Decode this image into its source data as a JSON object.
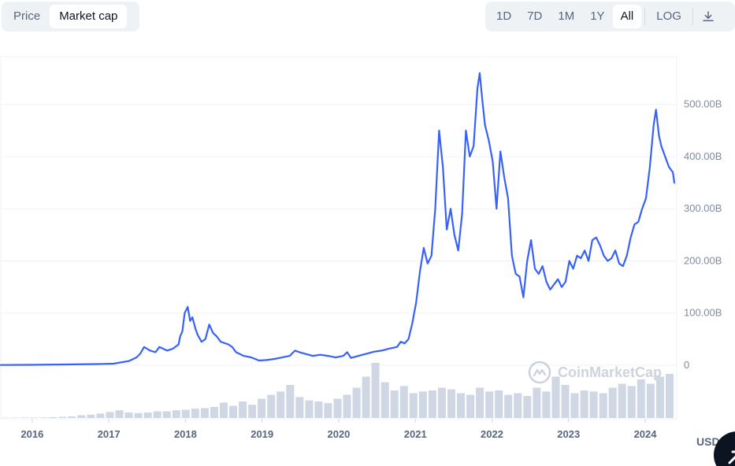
{
  "toggle": {
    "price_label": "Price",
    "market_cap_label": "Market cap"
  },
  "ranges": [
    "1D",
    "7D",
    "1M",
    "1Y",
    "All"
  ],
  "active_range": "All",
  "log_label": "LOG",
  "icons": {
    "download": "download-icon",
    "logo": "coinmarketcap-logo-icon",
    "fab": "arrow-up-right-icon"
  },
  "watermark": "CoinMarketCap",
  "currency": "USD",
  "colors": {
    "line": "#3861fb",
    "volume": "#cfd6e4",
    "grid": "#eff2f5",
    "fab": "#0d1421"
  },
  "chart_data": {
    "type": "line",
    "y_unit": "B",
    "ylim": [
      0,
      580
    ],
    "y_ticks": [
      0,
      100,
      200,
      300,
      400,
      500
    ],
    "y_tick_labels": [
      "0",
      "100.00B",
      "200.00B",
      "300.00B",
      "400.00B",
      "500.00B"
    ],
    "x_ticks": [
      "2016",
      "2017",
      "2018",
      "2019",
      "2020",
      "2021",
      "2022",
      "2023",
      "2024"
    ],
    "x_range": [
      2015.63,
      2024.42
    ],
    "grid": true,
    "series": [
      {
        "x": [
          2015.63,
          2016.0,
          2016.5,
          2016.9,
          2017.1,
          2017.3,
          2017.4,
          2017.45,
          2017.5,
          2017.58,
          2017.65,
          2017.7,
          2017.8,
          2017.88,
          2017.95,
          2017.97,
          2018.0,
          2018.03,
          2018.07,
          2018.1,
          2018.13,
          2018.17,
          2018.2,
          2018.25,
          2018.3,
          2018.35,
          2018.4,
          2018.45,
          2018.5,
          2018.6,
          2018.65,
          2018.7,
          2018.8,
          2018.9,
          2018.95,
          2019.0,
          2019.1,
          2019.2,
          2019.3,
          2019.4,
          2019.47,
          2019.55,
          2019.6,
          2019.7,
          2019.8,
          2019.9,
          2020.0,
          2020.1,
          2020.15,
          2020.2,
          2020.3,
          2020.4,
          2020.5,
          2020.6,
          2020.7,
          2020.8,
          2020.85,
          2020.9,
          2020.95,
          2021.0,
          2021.05,
          2021.1,
          2021.15,
          2021.2,
          2021.25,
          2021.3,
          2021.35,
          2021.4,
          2021.45,
          2021.5,
          2021.55,
          2021.6,
          2021.65,
          2021.7,
          2021.75,
          2021.8,
          2021.85,
          2021.88,
          2021.92,
          2021.95,
          2022.0,
          2022.05,
          2022.1,
          2022.15,
          2022.2,
          2022.25,
          2022.3,
          2022.35,
          2022.4,
          2022.45,
          2022.5,
          2022.55,
          2022.6,
          2022.65,
          2022.7,
          2022.75,
          2022.8,
          2022.85,
          2022.9,
          2022.95,
          2023.0,
          2023.05,
          2023.1,
          2023.15,
          2023.2,
          2023.25,
          2023.3,
          2023.35,
          2023.4,
          2023.45,
          2023.5,
          2023.55,
          2023.6,
          2023.65,
          2023.7,
          2023.75,
          2023.8,
          2023.85,
          2023.9,
          2023.95,
          2024.0,
          2024.05,
          2024.1,
          2024.15,
          2024.18,
          2024.22,
          2024.25,
          2024.3,
          2024.35,
          2024.4,
          2024.42
        ],
        "values": [
          0.5,
          0.8,
          1.5,
          2.2,
          3,
          8,
          15,
          22,
          35,
          28,
          25,
          35,
          28,
          32,
          40,
          55,
          65,
          100,
          112,
          85,
          92,
          70,
          58,
          45,
          50,
          78,
          62,
          55,
          45,
          40,
          35,
          25,
          18,
          15,
          12,
          9,
          10,
          12,
          15,
          18,
          28,
          24,
          22,
          18,
          20,
          18,
          15,
          18,
          25,
          14,
          18,
          22,
          26,
          28,
          32,
          35,
          45,
          42,
          50,
          80,
          120,
          180,
          225,
          195,
          210,
          300,
          450,
          380,
          260,
          300,
          250,
          220,
          290,
          450,
          400,
          420,
          530,
          560,
          500,
          460,
          430,
          390,
          300,
          410,
          360,
          320,
          210,
          175,
          170,
          130,
          200,
          240,
          185,
          175,
          190,
          160,
          145,
          155,
          165,
          150,
          160,
          200,
          185,
          210,
          205,
          220,
          200,
          240,
          245,
          230,
          210,
          200,
          205,
          220,
          195,
          190,
          210,
          245,
          270,
          275,
          300,
          320,
          380,
          460,
          490,
          440,
          420,
          400,
          380,
          370,
          350
        ]
      }
    ],
    "volume": [
      0.5,
      0.6,
      0.8,
      0.8,
      1,
      1.5,
      2,
      3,
      5,
      6,
      8,
      11,
      14,
      10,
      9,
      10,
      12,
      12,
      14,
      15,
      17,
      18,
      20,
      28,
      22,
      30,
      24,
      35,
      42,
      48,
      60,
      38,
      32,
      30,
      27,
      35,
      42,
      55,
      75,
      100,
      65,
      50,
      58,
      45,
      48,
      50,
      55,
      52,
      45,
      42,
      55,
      48,
      50,
      42,
      45,
      40,
      55,
      48,
      75,
      60,
      45,
      50,
      48,
      45,
      55,
      62,
      58,
      70,
      62,
      75,
      80
    ]
  }
}
